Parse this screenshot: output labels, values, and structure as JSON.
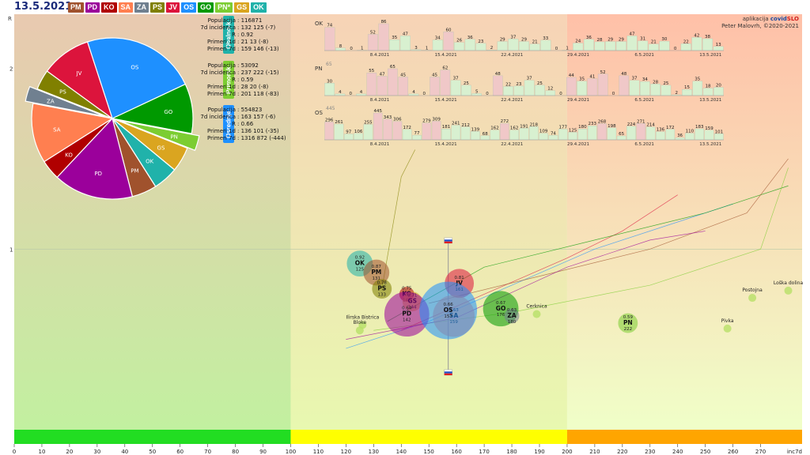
{
  "date": "13.5.2021",
  "chips": [
    {
      "label": "PM",
      "color": "#a0522d"
    },
    {
      "label": "PD",
      "color": "#9b009b"
    },
    {
      "label": "KO",
      "color": "#b00000"
    },
    {
      "label": "SA",
      "color": "#ff7f50"
    },
    {
      "label": "ZA",
      "color": "#708090"
    },
    {
      "label": "PS",
      "color": "#808000"
    },
    {
      "label": "JV",
      "color": "#dc143c"
    },
    {
      "label": "OS",
      "color": "#1e90ff"
    },
    {
      "label": "GO",
      "color": "#009900"
    },
    {
      "label": "PN*",
      "color": "#7ccd32"
    },
    {
      "label": "GS",
      "color": "#daa520"
    },
    {
      "label": "OK",
      "color": "#20b2aa"
    }
  ],
  "credit": {
    "prefix": "aplikacija ",
    "brand_a": "covid",
    "brand_b": "SLO",
    "author": "Peter Malovrh, ©2020-2021"
  },
  "regions": [
    {
      "tag": "Obalno-k.",
      "color": "#20b2aa",
      "code": "OK",
      "ymax": "",
      "stats": [
        [
          "Populacija",
          ": 116871"
        ],
        [
          "7d incidenca",
          ": 132 125 (-7)"
        ],
        [
          "R",
          ": 0.92"
        ],
        [
          "Primeri 1d",
          ": 21 13 (-8)"
        ],
        [
          "Primeri 7d",
          ": 159 146 (-13)"
        ]
      ],
      "bars": [
        74,
        8,
        0,
        1,
        52,
        86,
        35,
        47,
        3,
        1,
        34,
        60,
        26,
        36,
        23,
        2,
        29,
        37,
        29,
        21,
        33,
        0,
        1,
        24,
        36,
        28,
        29,
        29,
        47,
        31,
        21,
        30,
        0,
        22,
        42,
        38,
        13
      ],
      "labels": [
        "74",
        "8",
        "0",
        "1",
        "52",
        "86",
        "35",
        "47",
        "3",
        "1",
        "34",
        "60",
        "26",
        "36",
        "23",
        "2",
        "29",
        "37",
        "29",
        "21",
        "33",
        "0",
        "1",
        "24",
        "36",
        "28",
        "29",
        "29",
        "47",
        "31",
        "21",
        "30",
        "0",
        "22",
        "42",
        "38",
        "13"
      ]
    },
    {
      "tag": "Primorsk.",
      "color": "#7ccd32",
      "code": "PN",
      "ymax": "65",
      "stats": [
        [
          "Populacija",
          ": 53092"
        ],
        [
          "7d incidenca",
          ": 237 222 (-15)"
        ],
        [
          "R",
          ": 0.59"
        ],
        [
          "Primeri 1d",
          ": 28 20 (-8)"
        ],
        [
          "Primeri 7d",
          ": 201 118 (-83)"
        ]
      ],
      "bars": [
        30,
        4,
        0,
        4,
        55,
        47,
        65,
        45,
        4,
        0,
        45,
        62,
        37,
        25,
        5,
        0,
        48,
        22,
        23,
        37,
        25,
        12,
        0,
        44,
        35,
        41,
        52,
        0,
        48,
        37,
        34,
        28,
        25,
        2,
        15,
        35,
        18,
        20
      ],
      "labels": [
        "30",
        "4",
        "0",
        "4",
        "55",
        "47",
        "65",
        "45",
        "4",
        "0",
        "45",
        "62",
        "37",
        "25",
        "5",
        "0",
        "48",
        "22",
        "23",
        "37",
        "25",
        "12",
        "0",
        "44",
        "35",
        "41",
        "52",
        "0",
        "48",
        "37",
        "34",
        "28",
        "25",
        "2",
        "15",
        "35",
        "18",
        "20"
      ]
    },
    {
      "tag": "Osrednje.",
      "color": "#1e90ff",
      "code": "OS",
      "ymax": "445",
      "stats": [
        [
          "Populacija",
          ": 554823"
        ],
        [
          "7d incidenca",
          ": 163 157 (-6)"
        ],
        [
          "R",
          ": 0.66"
        ],
        [
          "Primeri 1d",
          ": 136 101 (-35)"
        ],
        [
          "Primeri 7d",
          ": 1316 872 (-444)"
        ]
      ],
      "bars": [
        296,
        261,
        97,
        106,
        255,
        445,
        343,
        306,
        172,
        77,
        279,
        309,
        181,
        241,
        212,
        139,
        68,
        162,
        272,
        162,
        191,
        218,
        109,
        74,
        177,
        125,
        180,
        233,
        268,
        198,
        65,
        224,
        271,
        214,
        136,
        172,
        36,
        110,
        183,
        159,
        101
      ],
      "labels": [
        "296",
        "261",
        "97",
        "106",
        "255",
        "445",
        "343",
        "306",
        "172",
        "77",
        "279",
        "309",
        "181",
        "241",
        "212",
        "139",
        "68",
        "162",
        "272",
        "162",
        "191",
        "218",
        "109",
        "74",
        "177",
        "125",
        "180",
        "233",
        "268",
        "198",
        "65",
        "224",
        "271",
        "214",
        "136",
        "172",
        "36",
        "110",
        "183",
        "159",
        "101"
      ]
    }
  ],
  "date_ticks": [
    "8.4.2021",
    "15.4.2021",
    "22.4.2021",
    "29.4.2021",
    "6.5.2021",
    "13.5.2021"
  ],
  "pie": [
    {
      "label": "OS",
      "value": 23,
      "color": "#1e90ff"
    },
    {
      "label": "GO",
      "value": 10,
      "color": "#009900"
    },
    {
      "label": "PN",
      "value": 3,
      "color": "#7ccd32",
      "offset": true
    },
    {
      "label": "GS",
      "value": 5,
      "color": "#daa520"
    },
    {
      "label": "OK",
      "value": 5,
      "color": "#20b2aa"
    },
    {
      "label": "PM",
      "value": 5,
      "color": "#a0522d"
    },
    {
      "label": "PD",
      "value": 16,
      "color": "#9b009b"
    },
    {
      "label": "KO",
      "value": 4,
      "color": "#b00000"
    },
    {
      "label": "SA",
      "value": 12,
      "color": "#ff7f50"
    },
    {
      "label": "ZA",
      "value": 3,
      "color": "#708090",
      "offset": true
    },
    {
      "label": "PS",
      "value": 4,
      "color": "#808000"
    },
    {
      "label": "JV",
      "value": 10,
      "color": "#dc143c"
    }
  ],
  "chart_data": {
    "type": "scatter",
    "xlabel": "inc7d",
    "ylabel": "R",
    "xlim": [
      0,
      285
    ],
    "ylim": [
      0,
      2.3
    ],
    "xticks": [
      0,
      10,
      20,
      30,
      40,
      50,
      60,
      70,
      80,
      90,
      100,
      110,
      120,
      130,
      140,
      150,
      160,
      170,
      180,
      190,
      200,
      210,
      220,
      230,
      240,
      250,
      260,
      270
    ],
    "yticks": [
      1,
      2
    ],
    "zones": [
      {
        "from": 0,
        "to": 100,
        "color": "#22dd22"
      },
      {
        "from": 100,
        "to": 200,
        "color": "#ffff00"
      },
      {
        "from": 200,
        "to": 285,
        "color": "#ffa500"
      }
    ],
    "bubbles": [
      {
        "label": "OK",
        "r": 0.92,
        "inc": 125,
        "size": 16,
        "color": "#20b2aa"
      },
      {
        "label": "PM",
        "r": 0.87,
        "inc": 131,
        "size": 16,
        "color": "#a0522d"
      },
      {
        "label": "PS",
        "r": 0.78,
        "inc": 133,
        "size": 12,
        "color": "#808000"
      },
      {
        "label": "KO",
        "r": 0.75,
        "inc": 142,
        "size": 9,
        "color": "#b00000"
      },
      {
        "label": "GS",
        "r": 0.71,
        "inc": 144,
        "size": 12,
        "color": "#daa520"
      },
      {
        "label": "JV",
        "r": 0.81,
        "inc": 161,
        "size": 18,
        "color": "#dc143c"
      },
      {
        "label": "PD",
        "r": 0.64,
        "inc": 142,
        "size": 28,
        "color": "#9b009b"
      },
      {
        "label": "SA",
        "r": 0.63,
        "inc": 159,
        "size": 26,
        "color": "#ff7f50"
      },
      {
        "label": "OS",
        "r": 0.66,
        "inc": 157,
        "size": 36,
        "color": "#1e90ff"
      },
      {
        "label": "GO",
        "r": 0.67,
        "inc": 176,
        "size": 22,
        "color": "#009900"
      },
      {
        "label": "ZA",
        "r": 0.63,
        "inc": 180,
        "size": 9,
        "color": "#708090"
      },
      {
        "label": "PN",
        "r": 0.59,
        "inc": 222,
        "size": 12,
        "color": "#7ccd32"
      }
    ],
    "bubble_values": {
      "OK": [
        "0.92",
        "125"
      ],
      "PM": [
        "0.87",
        "131"
      ],
      "PS": [
        "0.78",
        "133"
      ],
      "KO": [
        "0.75",
        "142"
      ],
      "GS": [
        "0.71",
        "144"
      ],
      "JV": [
        "0.81",
        "161"
      ],
      "PD": [
        "0.64",
        "142"
      ],
      "SA": [
        "0.63",
        "159"
      ],
      "OS": [
        "0.66",
        "157"
      ],
      "GO": [
        "0.67",
        "176"
      ],
      "ZA": [
        "0.63",
        "180"
      ],
      "PN": [
        "0.59",
        "222"
      ]
    },
    "towns": [
      {
        "name": "Ilirska Bistrica",
        "inc": 126,
        "r": 0.58
      },
      {
        "name": "Bloke",
        "inc": 125,
        "r": 0.55
      },
      {
        "name": "Cerknica",
        "inc": 189,
        "r": 0.64
      },
      {
        "name": "Postojna",
        "inc": 267,
        "r": 0.73
      },
      {
        "name": "Loška dolina",
        "inc": 280,
        "r": 0.77
      },
      {
        "name": "Pivka",
        "inc": 258,
        "r": 0.56
      }
    ]
  }
}
